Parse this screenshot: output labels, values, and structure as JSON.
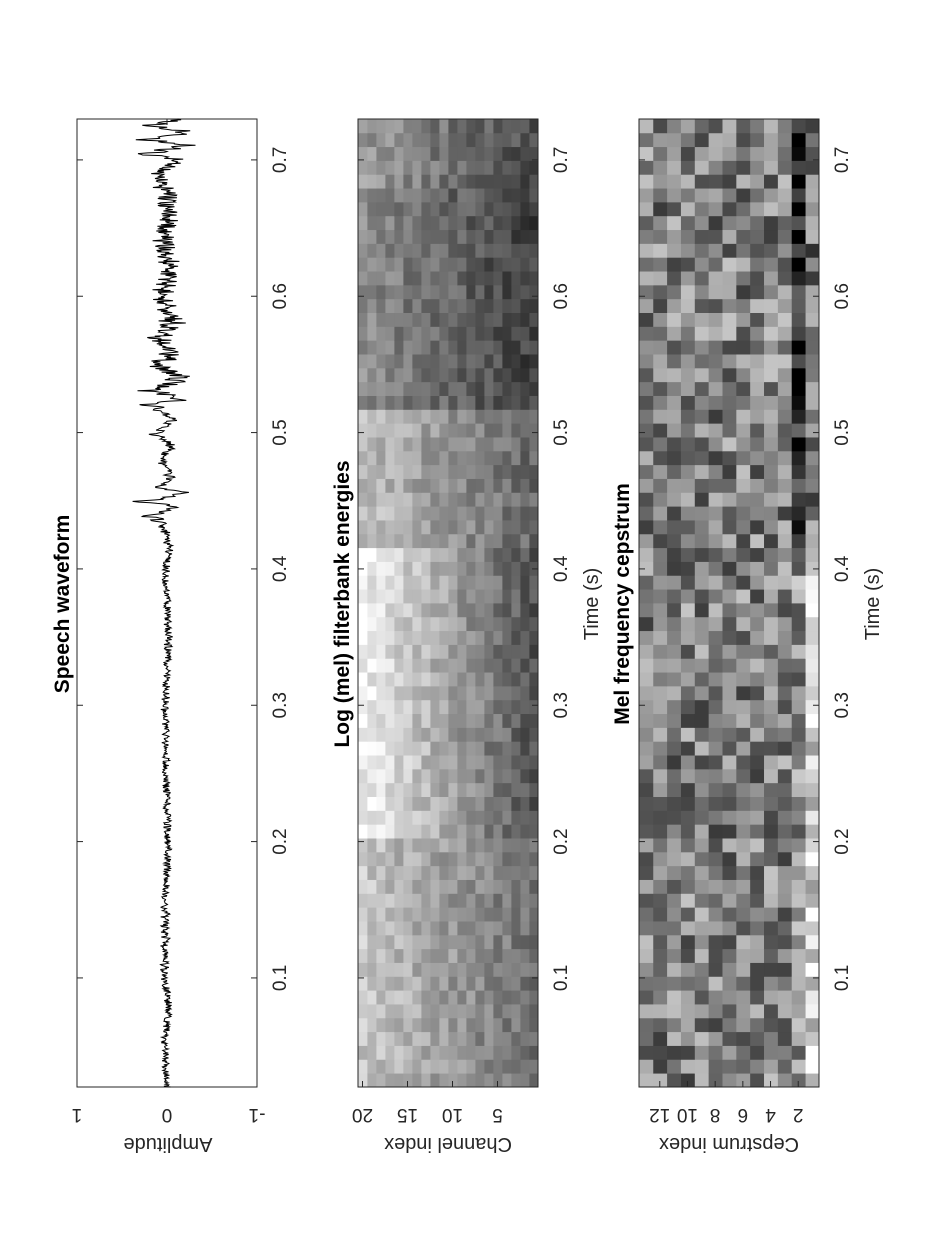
{
  "chart_data": [
    {
      "type": "line",
      "title": "Speech waveform",
      "xlabel": "",
      "ylabel": "Amplitude",
      "xlim": [
        0.02,
        0.73
      ],
      "ylim": [
        -1,
        1
      ],
      "xticks": [
        "0.1",
        "0.2",
        "0.3",
        "0.4",
        "0.5",
        "0.6",
        "0.7"
      ],
      "yticks": [
        "-1",
        "0",
        "1"
      ],
      "grid": false,
      "series": [
        {
          "x": [
            0.02,
            0.05,
            0.08,
            0.1,
            0.15,
            0.2,
            0.25,
            0.3,
            0.35,
            0.4,
            0.415,
            0.43,
            0.44,
            0.445,
            0.45,
            0.455,
            0.46,
            0.47,
            0.48,
            0.49,
            0.5,
            0.51,
            0.52,
            0.525,
            0.53,
            0.54,
            0.55,
            0.56,
            0.57,
            0.58,
            0.6,
            0.62,
            0.64,
            0.66,
            0.68,
            0.69,
            0.7,
            0.705,
            0.71,
            0.715,
            0.72,
            0.725,
            0.73
          ],
          "values": [
            0.0,
            0.04,
            -0.03,
            0.04,
            0.03,
            -0.02,
            0.02,
            0.03,
            -0.03,
            0.03,
            -0.04,
            0.06,
            0.28,
            -0.2,
            0.42,
            -0.32,
            0.12,
            -0.1,
            0.12,
            -0.08,
            0.2,
            -0.12,
            0.3,
            -0.36,
            0.28,
            -0.24,
            0.18,
            -0.16,
            0.24,
            -0.14,
            0.12,
            -0.1,
            0.08,
            -0.07,
            0.05,
            0.16,
            -0.18,
            0.44,
            -0.4,
            0.32,
            -0.38,
            0.26,
            -0.22
          ]
        }
      ]
    },
    {
      "type": "heatmap",
      "title": "Log (mel) filterbank energies",
      "xlabel": "Time (s)",
      "ylabel": "Channel index",
      "xlim": [
        0.02,
        0.73
      ],
      "ylim": [
        0.5,
        20.5
      ],
      "xticks": [
        "0.1",
        "0.2",
        "0.3",
        "0.4",
        "0.5",
        "0.6",
        "0.7"
      ],
      "yticks": [
        "5",
        "10",
        "15",
        "20"
      ],
      "colormap": "gray",
      "rows": 20,
      "cols": 70,
      "segments": [
        {
          "t": [
            0.02,
            0.2
          ],
          "level": "light, brightest in low channels"
        },
        {
          "t": [
            0.2,
            0.42
          ],
          "level": "medium-dark in high channels, near-white in low channels"
        },
        {
          "t": [
            0.42,
            0.52
          ],
          "level": "medium"
        },
        {
          "t": [
            0.52,
            0.68
          ],
          "level": "dark"
        },
        {
          "t": [
            0.68,
            0.73
          ],
          "level": "medium-dark"
        }
      ]
    },
    {
      "type": "heatmap",
      "title": "Mel frequency cepstrum",
      "xlabel": "Time (s)",
      "ylabel": "Cepstrum index",
      "xlim": [
        0.02,
        0.73
      ],
      "ylim": [
        0.5,
        13.5
      ],
      "xticks": [
        "0.1",
        "0.2",
        "0.3",
        "0.4",
        "0.5",
        "0.6",
        "0.7"
      ],
      "yticks": [
        "2",
        "4",
        "6",
        "8",
        "10",
        "12"
      ],
      "colormap": "gray",
      "rows": 13,
      "cols": 70,
      "segments": [
        {
          "t": [
            0.02,
            0.42
          ],
          "level": "mixed gray, light bottom row"
        },
        {
          "t": [
            0.42,
            0.73
          ],
          "level": "mixed gray, dark bottom rows"
        }
      ]
    }
  ]
}
